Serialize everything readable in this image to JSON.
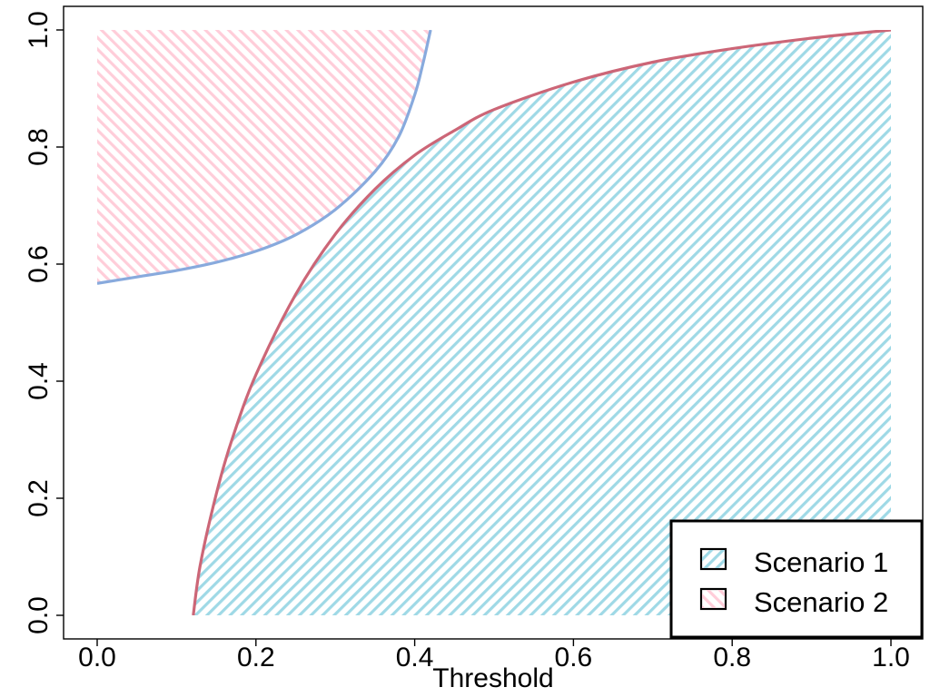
{
  "chart_data": {
    "type": "area",
    "title": "",
    "xlabel": "Threshold",
    "ylabel": "",
    "xlim": [
      0,
      1
    ],
    "ylim": [
      0,
      1
    ],
    "x_ticks": [
      "0.0",
      "0.2",
      "0.4",
      "0.6",
      "0.8",
      "1.0"
    ],
    "y_ticks": [
      "0.0",
      "0.2",
      "0.4",
      "0.6",
      "0.8",
      "1.0"
    ],
    "grid": false,
    "legend_position": "bottom-right",
    "series": [
      {
        "name": "Scenario 1",
        "line_color": "#cc6677",
        "fill_color": "#88ccdd",
        "fill": "below curve (diagonal hatch)",
        "points": [
          [
            0.121,
            0.0
          ],
          [
            0.13,
            0.087
          ],
          [
            0.15,
            0.207
          ],
          [
            0.17,
            0.301
          ],
          [
            0.2,
            0.411
          ],
          [
            0.25,
            0.548
          ],
          [
            0.3,
            0.651
          ],
          [
            0.35,
            0.728
          ],
          [
            0.4,
            0.786
          ],
          [
            0.45,
            0.828
          ],
          [
            0.5,
            0.864
          ],
          [
            0.6,
            0.911
          ],
          [
            0.7,
            0.945
          ],
          [
            0.8,
            0.968
          ],
          [
            0.9,
            0.986
          ],
          [
            1.0,
            1.0
          ]
        ]
      },
      {
        "name": "Scenario 2",
        "line_color": "#88aadd",
        "fill_color": "#ffbbcc",
        "fill": "above curve (diagonal hatch)",
        "points": [
          [
            0.0,
            0.567
          ],
          [
            0.05,
            0.578
          ],
          [
            0.1,
            0.589
          ],
          [
            0.15,
            0.603
          ],
          [
            0.2,
            0.622
          ],
          [
            0.25,
            0.65
          ],
          [
            0.3,
            0.693
          ],
          [
            0.35,
            0.758
          ],
          [
            0.38,
            0.818
          ],
          [
            0.4,
            0.889
          ],
          [
            0.41,
            0.94
          ],
          [
            0.42,
            1.0
          ]
        ]
      }
    ]
  }
}
